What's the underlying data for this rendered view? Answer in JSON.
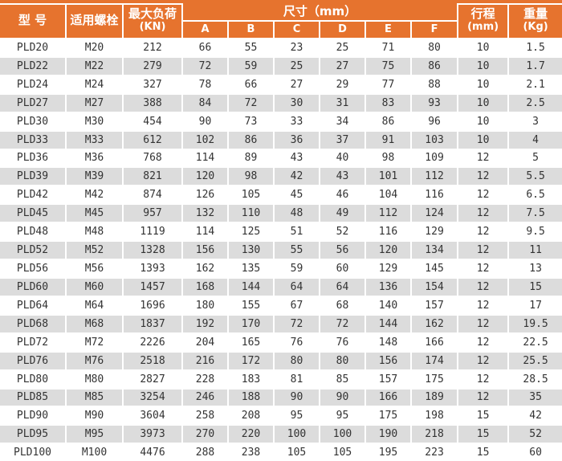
{
  "colors": {
    "header_bg": "#e6732e",
    "header_text": "#ffffff",
    "row_odd_bg": "#ffffff",
    "row_even_bg": "#dcdcdc",
    "body_text": "#333333",
    "divider": "#ffffff"
  },
  "chart_data": {
    "type": "table",
    "header": {
      "model": "型  号",
      "bolt": "适用螺栓",
      "max_load_line1": "最大负荷",
      "max_load_line2": "(KN)",
      "size_group": "尺寸（mm）",
      "size_columns": [
        "A",
        "B",
        "C",
        "D",
        "E",
        "F"
      ],
      "stroke_line1": "行程",
      "stroke_line2": "(mm)",
      "weight_line1": "重量",
      "weight_line2": "(Kg)"
    },
    "columns_flat": [
      "型号",
      "适用螺栓",
      "最大负荷(KN)",
      "A(mm)",
      "B(mm)",
      "C(mm)",
      "D(mm)",
      "E(mm)",
      "F(mm)",
      "行程(mm)",
      "重量(Kg)"
    ],
    "rows": [
      [
        "PLD20",
        "M20",
        "212",
        "66",
        "55",
        "23",
        "25",
        "71",
        "80",
        "10",
        "1.5"
      ],
      [
        "PLD22",
        "M22",
        "279",
        "72",
        "59",
        "25",
        "27",
        "75",
        "86",
        "10",
        "1.7"
      ],
      [
        "PLD24",
        "M24",
        "327",
        "78",
        "66",
        "27",
        "29",
        "77",
        "88",
        "10",
        "2.1"
      ],
      [
        "PLD27",
        "M27",
        "388",
        "84",
        "72",
        "30",
        "31",
        "83",
        "93",
        "10",
        "2.5"
      ],
      [
        "PLD30",
        "M30",
        "454",
        "90",
        "73",
        "33",
        "34",
        "86",
        "96",
        "10",
        "3"
      ],
      [
        "PLD33",
        "M33",
        "612",
        "102",
        "86",
        "36",
        "37",
        "91",
        "103",
        "10",
        "4"
      ],
      [
        "PLD36",
        "M36",
        "768",
        "114",
        "89",
        "43",
        "40",
        "98",
        "109",
        "12",
        "5"
      ],
      [
        "PLD39",
        "M39",
        "821",
        "120",
        "98",
        "42",
        "43",
        "101",
        "112",
        "12",
        "5.5"
      ],
      [
        "PLD42",
        "M42",
        "874",
        "126",
        "105",
        "45",
        "46",
        "104",
        "116",
        "12",
        "6.5"
      ],
      [
        "PLD45",
        "M45",
        "957",
        "132",
        "110",
        "48",
        "49",
        "112",
        "124",
        "12",
        "7.5"
      ],
      [
        "PLD48",
        "M48",
        "1119",
        "114",
        "125",
        "51",
        "52",
        "116",
        "129",
        "12",
        "9.5"
      ],
      [
        "PLD52",
        "M52",
        "1328",
        "156",
        "130",
        "55",
        "56",
        "120",
        "134",
        "12",
        "11"
      ],
      [
        "PLD56",
        "M56",
        "1393",
        "162",
        "135",
        "59",
        "60",
        "129",
        "145",
        "12",
        "13"
      ],
      [
        "PLD60",
        "M60",
        "1457",
        "168",
        "144",
        "64",
        "64",
        "136",
        "154",
        "12",
        "15"
      ],
      [
        "PLD64",
        "M64",
        "1696",
        "180",
        "155",
        "67",
        "68",
        "140",
        "157",
        "12",
        "17"
      ],
      [
        "PLD68",
        "M68",
        "1837",
        "192",
        "170",
        "72",
        "72",
        "144",
        "162",
        "12",
        "19.5"
      ],
      [
        "PLD72",
        "M72",
        "2226",
        "204",
        "165",
        "76",
        "76",
        "148",
        "166",
        "12",
        "22.5"
      ],
      [
        "PLD76",
        "M76",
        "2518",
        "216",
        "172",
        "80",
        "80",
        "156",
        "174",
        "12",
        "25.5"
      ],
      [
        "PLD80",
        "M80",
        "2827",
        "228",
        "183",
        "81",
        "85",
        "157",
        "175",
        "12",
        "28.5"
      ],
      [
        "PLD85",
        "M85",
        "3254",
        "246",
        "188",
        "90",
        "90",
        "166",
        "189",
        "12",
        "35"
      ],
      [
        "PLD90",
        "M90",
        "3604",
        "258",
        "208",
        "95",
        "95",
        "175",
        "198",
        "15",
        "42"
      ],
      [
        "PLD95",
        "M95",
        "3973",
        "270",
        "220",
        "100",
        "100",
        "190",
        "218",
        "15",
        "52"
      ],
      [
        "PLD100",
        "M100",
        "4476",
        "288",
        "238",
        "105",
        "105",
        "195",
        "223",
        "15",
        "60"
      ]
    ]
  }
}
